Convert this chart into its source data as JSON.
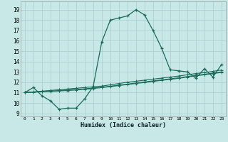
{
  "xlabel": "Humidex (Indice chaleur)",
  "x_ticks": [
    0,
    1,
    2,
    3,
    4,
    5,
    6,
    7,
    8,
    9,
    10,
    11,
    12,
    13,
    14,
    15,
    16,
    17,
    18,
    19,
    20,
    21,
    22,
    23
  ],
  "xlim": [
    -0.5,
    23.5
  ],
  "ylim": [
    8.7,
    19.8
  ],
  "y_ticks": [
    9,
    10,
    11,
    12,
    13,
    14,
    15,
    16,
    17,
    18,
    19
  ],
  "bg_color": "#c8e8e8",
  "grid_color": "#a8cccc",
  "line_color": "#1a6a5a",
  "series_main": [
    11.0,
    11.5,
    10.7,
    10.2,
    9.4,
    9.5,
    9.5,
    10.4,
    11.6,
    15.9,
    18.0,
    18.2,
    18.4,
    19.0,
    18.5,
    17.0,
    15.3,
    13.2,
    13.1,
    13.0,
    12.4,
    13.3,
    12.5,
    13.7
  ],
  "series_lin1": [
    11.0,
    11.07,
    11.14,
    11.21,
    11.28,
    11.35,
    11.42,
    11.49,
    11.56,
    11.63,
    11.75,
    11.88,
    12.0,
    12.1,
    12.2,
    12.3,
    12.4,
    12.5,
    12.6,
    12.72,
    12.84,
    12.93,
    13.05,
    13.18
  ],
  "series_lin2": [
    11.0,
    11.05,
    11.1,
    11.15,
    11.2,
    11.25,
    11.3,
    11.37,
    11.44,
    11.52,
    11.62,
    11.72,
    11.82,
    11.93,
    12.03,
    12.13,
    12.23,
    12.33,
    12.43,
    12.55,
    12.67,
    12.77,
    12.88,
    13.0
  ],
  "series_lin3": [
    11.0,
    11.04,
    11.08,
    11.12,
    11.16,
    11.2,
    11.25,
    11.32,
    11.4,
    11.48,
    11.58,
    11.68,
    11.78,
    11.88,
    11.98,
    12.08,
    12.18,
    12.28,
    12.38,
    12.5,
    12.62,
    12.72,
    12.83,
    12.95
  ]
}
